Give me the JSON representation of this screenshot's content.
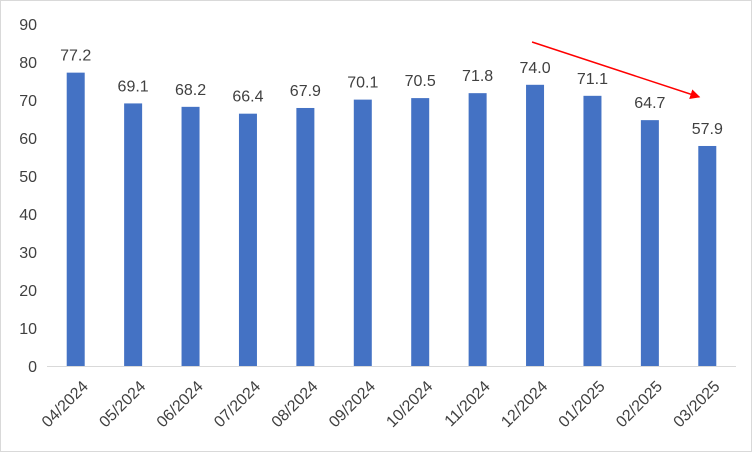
{
  "chart_data": {
    "type": "bar",
    "title": "",
    "xlabel": "",
    "ylabel": "",
    "categories": [
      "04/2024",
      "05/2024",
      "06/2024",
      "07/2024",
      "08/2024",
      "09/2024",
      "10/2024",
      "11/2024",
      "12/2024",
      "01/2025",
      "02/2025",
      "03/2025"
    ],
    "values": [
      77.2,
      69.1,
      68.2,
      66.4,
      67.9,
      70.1,
      70.5,
      71.8,
      74.0,
      71.1,
      64.7,
      57.9
    ],
    "data_labels": [
      "77.2",
      "69.1",
      "68.2",
      "66.4",
      "67.9",
      "70.1",
      "70.5",
      "71.8",
      "74.0",
      "71.1",
      "64.7",
      "57.9"
    ],
    "ylim": [
      0,
      90
    ],
    "yticks": [
      "0",
      "10",
      "20",
      "30",
      "40",
      "50",
      "60",
      "70",
      "80",
      "90"
    ],
    "grid": false,
    "legend": "none",
    "bar_color": "#4472c4",
    "annotation_arrow_color": "#ff0000",
    "annotation": "trend-arrow-down from 12/2024 to 03/2025"
  }
}
